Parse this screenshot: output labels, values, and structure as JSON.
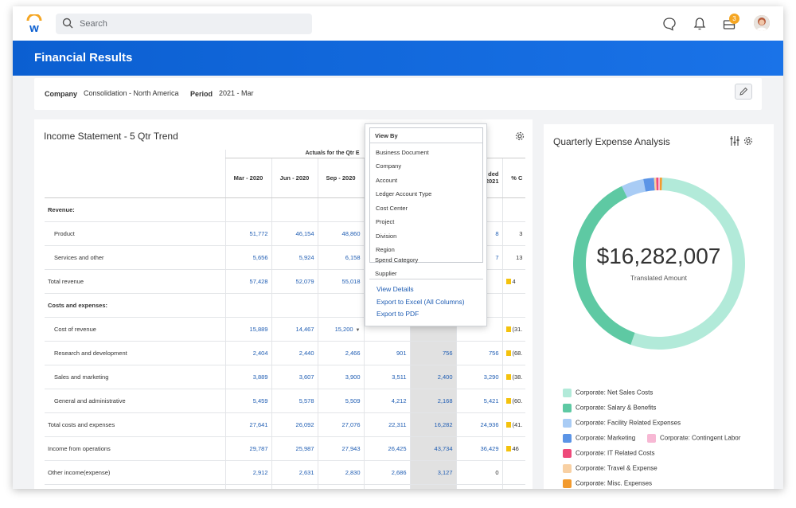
{
  "search": {
    "placeholder": "Search"
  },
  "header": {
    "title": "Financial Results",
    "notification_count": "3"
  },
  "filters": {
    "company_label": "Company",
    "company_value": "Consolidation - North America",
    "period_label": "Period",
    "period_value": "2021 - Mar"
  },
  "income": {
    "title": "Income Statement - 5 Qtr Trend",
    "group_header": "Actuals for the Qtr E",
    "col_headers": [
      "Mar - 2020",
      "Jun - 2020",
      "Sep - 2020",
      "",
      "",
      "ded\n2021",
      "% C"
    ],
    "rows": [
      {
        "label": "Revenue:",
        "type": "section",
        "vals": [
          "",
          "",
          "",
          "",
          "",
          "",
          ""
        ]
      },
      {
        "label": "Product",
        "type": "sub",
        "vals": [
          "51,772",
          "46,154",
          "48,860",
          "",
          "",
          "8",
          "3"
        ]
      },
      {
        "label": "Services and other",
        "type": "sub",
        "vals": [
          "5,656",
          "5,924",
          "6,158",
          "",
          "",
          "7",
          "13"
        ]
      },
      {
        "label": "Total revenue",
        "type": "total",
        "vals": [
          "57,428",
          "52,079",
          "55,018",
          "",
          "",
          "",
          "4"
        ]
      },
      {
        "label": "Costs and expenses:",
        "type": "section",
        "vals": [
          "",
          "",
          "",
          "",
          "",
          "",
          ""
        ]
      },
      {
        "label": "Cost of revenue",
        "type": "sub",
        "vals": [
          "15,889",
          "14,467",
          "15,200",
          "",
          "",
          "",
          "(31."
        ]
      },
      {
        "label": "Research and development",
        "type": "sub",
        "vals": [
          "2,404",
          "2,440",
          "2,466",
          "901",
          "756",
          "756",
          "(68."
        ]
      },
      {
        "label": "Sales and marketing",
        "type": "sub",
        "vals": [
          "3,889",
          "3,607",
          "3,900",
          "3,511",
          "2,400",
          "3,290",
          "(38."
        ]
      },
      {
        "label": "General and administrative",
        "type": "sub",
        "vals": [
          "5,459",
          "5,578",
          "5,509",
          "4,212",
          "2,168",
          "5,421",
          "(60."
        ]
      },
      {
        "label": "Total costs and expenses",
        "type": "total",
        "vals": [
          "27,641",
          "26,092",
          "27,076",
          "22,311",
          "16,282",
          "24,936",
          "(41."
        ]
      },
      {
        "label": "Income from operations",
        "type": "total",
        "vals": [
          "29,787",
          "25,987",
          "27,943",
          "26,425",
          "43,734",
          "36,429",
          "46"
        ]
      },
      {
        "label": "Other income(expense)",
        "type": "plain",
        "vals": [
          "2,912",
          "2,631",
          "2,830",
          "2,686",
          "3,127",
          "0",
          ""
        ]
      }
    ]
  },
  "menu": {
    "view_by_title": "View By",
    "options": [
      "Business Document",
      "Company",
      "Account",
      "Ledger Account Type",
      "Cost Center",
      "Project",
      "Division",
      "Region",
      "Spend Category",
      "Supplier"
    ],
    "actions": [
      "View Details",
      "Export to Excel (All Columns)",
      "Export to PDF"
    ]
  },
  "expense": {
    "title": "Quarterly Expense Analysis",
    "total": "$16,282,007",
    "subtitle": "Translated Amount",
    "legend": [
      {
        "label": "Corporate: Net Sales Costs",
        "color": "#b2ead9"
      },
      {
        "label": "Corporate: Salary & Benefits",
        "color": "#5ec9a3"
      },
      {
        "label": "Corporate: Facility Related Expenses",
        "color": "#a9ccf5"
      },
      {
        "label": "Corporate: Marketing",
        "color": "#5b94e6"
      },
      {
        "label": "Corporate: Contingent Labor",
        "color": "#f7b8d4"
      },
      {
        "label": "Corporate: IT Related Costs",
        "color": "#ee4a7a"
      },
      {
        "label": "Corporate: Travel & Expense",
        "color": "#f8d0a3"
      },
      {
        "label": "Corporate: Misc. Expenses",
        "color": "#f29a2e"
      }
    ]
  },
  "colors": {
    "brand_blue": "#0b5fd1",
    "link_blue": "#1f5db3",
    "flag_yellow": "#f4c20d"
  }
}
